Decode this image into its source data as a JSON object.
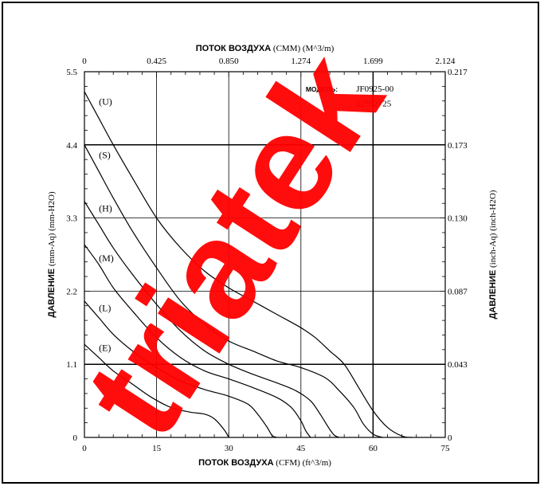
{
  "watermark": {
    "text": "triatek",
    "color": "#ff0000"
  },
  "chart_data": {
    "type": "line",
    "model": {
      "label": "МОДЕЛЬ:",
      "name": "JF0925-00",
      "size": "92*92*25"
    },
    "x_bottom": {
      "label_bold": "ПОТОК ВОЗДУХА",
      "label_rest": " (CFM) (ft^3/m)",
      "ticks": [
        "0",
        "15",
        "30",
        "45",
        "60",
        "75"
      ],
      "range": [
        0,
        75
      ]
    },
    "x_top": {
      "label_bold": "ПОТОК ВОЗДУХА",
      "label_rest": " (CMM) (M^3/m)",
      "ticks": [
        "0",
        "0.425",
        "0.850",
        "1.274",
        "1.699",
        "2.124"
      ]
    },
    "y_left": {
      "label_bold": "ДАВЛЕНИЕ",
      "label_rest": " (mm-Aq) (mm-H2O)",
      "ticks": [
        "0",
        "1.1",
        "2.2",
        "3.3",
        "4.4",
        "5.5"
      ],
      "range": [
        0,
        5.5
      ]
    },
    "y_right": {
      "label_bold": "ДАВЛЕНИЕ",
      "label_rest": " (inch-Aq) (inch-H2O)",
      "ticks": [
        "0",
        "0.043",
        "0.087",
        "0.130",
        "0.173",
        "0.217"
      ]
    },
    "grid": true,
    "emphasized_lines": {
      "y": [
        1.1,
        4.4
      ],
      "x": [
        60
      ]
    },
    "series": [
      {
        "name": "(U)",
        "label_at": [
          3,
          5.0
        ],
        "points": [
          [
            0,
            5.2
          ],
          [
            3,
            4.8
          ],
          [
            6,
            4.4
          ],
          [
            10,
            3.9
          ],
          [
            15,
            3.3
          ],
          [
            20,
            2.85
          ],
          [
            25,
            2.5
          ],
          [
            30,
            2.25
          ],
          [
            35,
            2.05
          ],
          [
            40,
            1.85
          ],
          [
            45,
            1.65
          ],
          [
            48,
            1.5
          ],
          [
            51,
            1.3
          ],
          [
            54,
            1.1
          ],
          [
            57,
            0.75
          ],
          [
            60,
            0.4
          ],
          [
            63,
            0.15
          ],
          [
            66,
            0.02
          ],
          [
            68,
            0
          ]
        ]
      },
      {
        "name": "(S)",
        "label_at": [
          3,
          4.2
        ],
        "points": [
          [
            0,
            4.4
          ],
          [
            3,
            4.0
          ],
          [
            6,
            3.6
          ],
          [
            10,
            3.1
          ],
          [
            15,
            2.55
          ],
          [
            20,
            2.05
          ],
          [
            25,
            1.7
          ],
          [
            30,
            1.45
          ],
          [
            35,
            1.3
          ],
          [
            40,
            1.15
          ],
          [
            45,
            1.05
          ],
          [
            50,
            0.9
          ],
          [
            53,
            0.7
          ],
          [
            56,
            0.45
          ],
          [
            58,
            0.2
          ],
          [
            60,
            0.05
          ],
          [
            62,
            0
          ]
        ]
      },
      {
        "name": "(H)",
        "label_at": [
          3,
          3.4
        ],
        "points": [
          [
            0,
            3.55
          ],
          [
            3,
            3.2
          ],
          [
            6,
            2.85
          ],
          [
            10,
            2.45
          ],
          [
            15,
            2.0
          ],
          [
            20,
            1.6
          ],
          [
            25,
            1.3
          ],
          [
            30,
            1.1
          ],
          [
            35,
            0.95
          ],
          [
            40,
            0.82
          ],
          [
            44,
            0.7
          ],
          [
            47,
            0.55
          ],
          [
            49,
            0.35
          ],
          [
            51,
            0.12
          ],
          [
            52,
            0.03
          ],
          [
            53,
            0
          ]
        ]
      },
      {
        "name": "(M)",
        "label_at": [
          3,
          2.65
        ],
        "points": [
          [
            0,
            2.9
          ],
          [
            3,
            2.6
          ],
          [
            6,
            2.25
          ],
          [
            10,
            1.9
          ],
          [
            15,
            1.5
          ],
          [
            20,
            1.2
          ],
          [
            25,
            1.0
          ],
          [
            30,
            0.88
          ],
          [
            35,
            0.75
          ],
          [
            40,
            0.6
          ],
          [
            43,
            0.45
          ],
          [
            45,
            0.25
          ],
          [
            46,
            0.1
          ],
          [
            47,
            0
          ]
        ]
      },
      {
        "name": "(L)",
        "label_at": [
          3,
          1.9
        ],
        "points": [
          [
            0,
            2.05
          ],
          [
            3,
            1.8
          ],
          [
            6,
            1.55
          ],
          [
            10,
            1.3
          ],
          [
            15,
            1.05
          ],
          [
            20,
            0.85
          ],
          [
            25,
            0.72
          ],
          [
            30,
            0.62
          ],
          [
            34,
            0.5
          ],
          [
            36,
            0.35
          ],
          [
            38,
            0.15
          ],
          [
            39,
            0.03
          ],
          [
            40,
            0
          ]
        ]
      },
      {
        "name": "(E)",
        "label_at": [
          3,
          1.3
        ],
        "points": [
          [
            0,
            1.4
          ],
          [
            3,
            1.2
          ],
          [
            6,
            1.0
          ],
          [
            10,
            0.8
          ],
          [
            14,
            0.6
          ],
          [
            18,
            0.45
          ],
          [
            22,
            0.38
          ],
          [
            25,
            0.35
          ],
          [
            27,
            0.28
          ],
          [
            29,
            0.12
          ],
          [
            30,
            0
          ]
        ]
      }
    ]
  }
}
